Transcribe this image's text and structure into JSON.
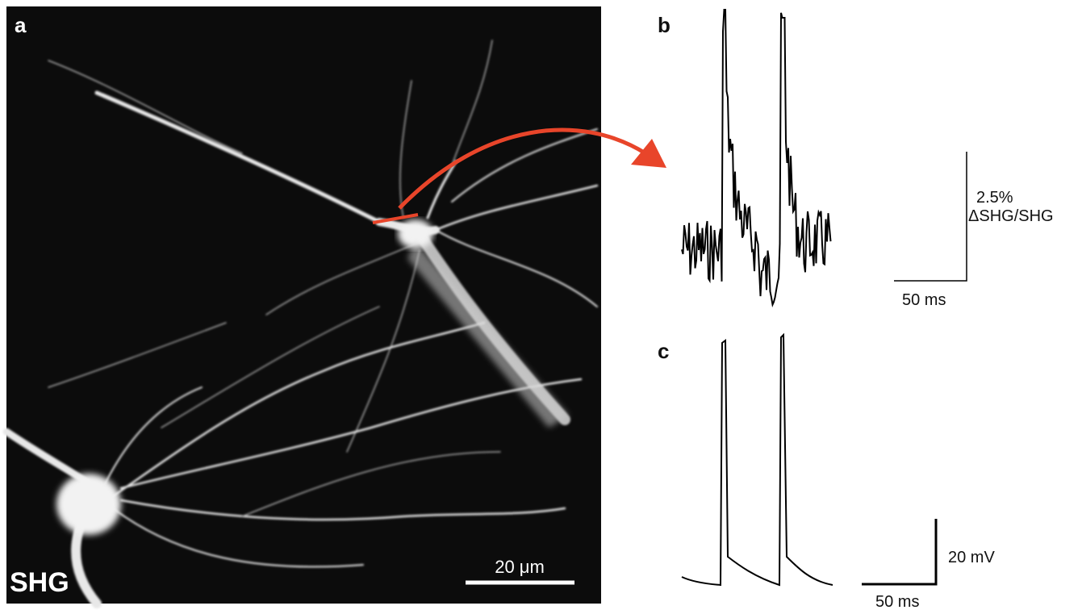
{
  "panels": [
    {
      "label": "a",
      "overlay": "SHG",
      "scale_bar": "20 μm"
    },
    {
      "label": "b",
      "scale_y": "2.5%",
      "scale_y_unit": "ΔSHG/SHG",
      "scale_x": "50 ms"
    },
    {
      "label": "c",
      "scale_y": "20 mV",
      "scale_x": "50 ms"
    }
  ]
}
